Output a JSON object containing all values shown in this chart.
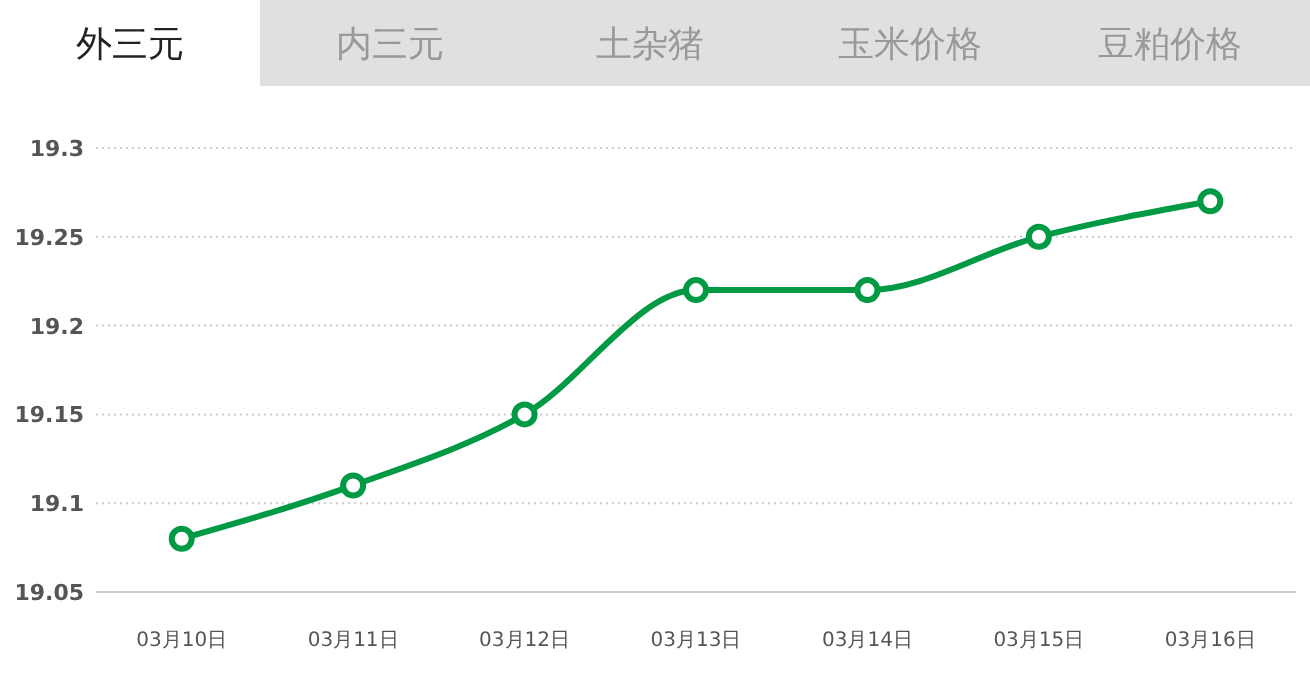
{
  "chart_data": {
    "type": "line",
    "title": "外三元",
    "annotations": [
      "内三元",
      "土杂猪",
      "玉米价格",
      "豆粕价格"
    ],
    "categories": [
      "03月10日",
      "03月11日",
      "03月12日",
      "03月13日",
      "03月14日",
      "03月15日",
      "03月16日"
    ],
    "series": [
      {
        "color": "#009944",
        "values": [
          19.08,
          19.11,
          19.15,
          19.22,
          19.22,
          19.25,
          19.27
        ]
      }
    ],
    "ylim": [
      19.05,
      19.3
    ],
    "yticks": [
      19.05,
      19.1,
      19.15,
      19.2,
      19.25,
      19.3
    ],
    "grid": "y",
    "marker": "circle",
    "line_style": "solid"
  }
}
